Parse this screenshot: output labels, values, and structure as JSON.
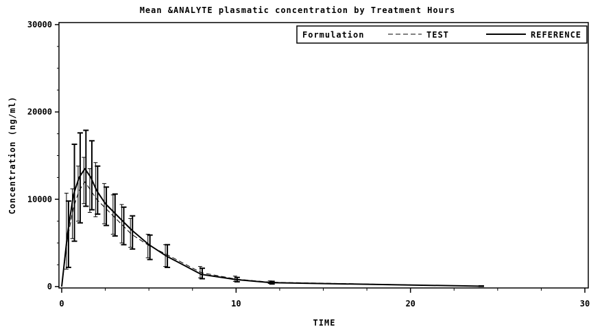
{
  "chart_data": {
    "type": "line",
    "title": "Mean  &ANALYTE plasmatic concentration by Treatment Hours",
    "xlabel": "TIME",
    "ylabel": "Concentration (ng/ml)",
    "xlim": [
      0,
      30
    ],
    "ylim": [
      0,
      30000
    ],
    "xticks": [
      0,
      10,
      20,
      30
    ],
    "xtick_labels": [
      "0",
      "10",
      "20",
      "30"
    ],
    "yticks": [
      0,
      10000,
      20000,
      30000
    ],
    "ytick_labels": [
      "0",
      "10000",
      "20000",
      "30000"
    ],
    "grid": false,
    "legend": {
      "placement": "top-right",
      "title": "Formulation",
      "entries": [
        "TEST",
        "REFERENCE"
      ]
    },
    "x": [
      0,
      0.33,
      0.67,
      1,
      1.33,
      1.67,
      2,
      2.5,
      3,
      3.5,
      4,
      5,
      6,
      8,
      10,
      12,
      24
    ],
    "series": [
      {
        "name": "TEST",
        "line_style": "dashed",
        "color": "#000000",
        "values": [
          0,
          5500,
          9000,
          11000,
          12000,
          11000,
          10000,
          9000,
          8000,
          7000,
          6000,
          4700,
          3700,
          1600,
          850,
          500,
          50
        ],
        "error_low": [
          0,
          2000,
          5500,
          7500,
          9500,
          8500,
          8000,
          7200,
          6000,
          5000,
          4500,
          3300,
          2300,
          1000,
          600,
          350,
          30
        ],
        "error_high": [
          0,
          10700,
          11200,
          13800,
          14800,
          13500,
          14200,
          11800,
          10500,
          9400,
          7800,
          6000,
          4800,
          2300,
          1200,
          650,
          80
        ]
      },
      {
        "name": "REFERENCE",
        "line_style": "solid",
        "color": "#000000",
        "values": [
          0,
          6000,
          10500,
          12500,
          13500,
          12500,
          11000,
          9500,
          8500,
          7500,
          6500,
          4800,
          3500,
          1400,
          800,
          450,
          50
        ],
        "error_low": [
          0,
          2200,
          5200,
          7300,
          9200,
          8800,
          8300,
          7000,
          5800,
          4800,
          4300,
          3100,
          2200,
          900,
          550,
          300,
          30
        ],
        "error_high": [
          0,
          9800,
          16300,
          17600,
          17900,
          16700,
          13800,
          11400,
          10600,
          9100,
          8100,
          5900,
          4800,
          2100,
          1050,
          600,
          80
        ]
      }
    ]
  }
}
